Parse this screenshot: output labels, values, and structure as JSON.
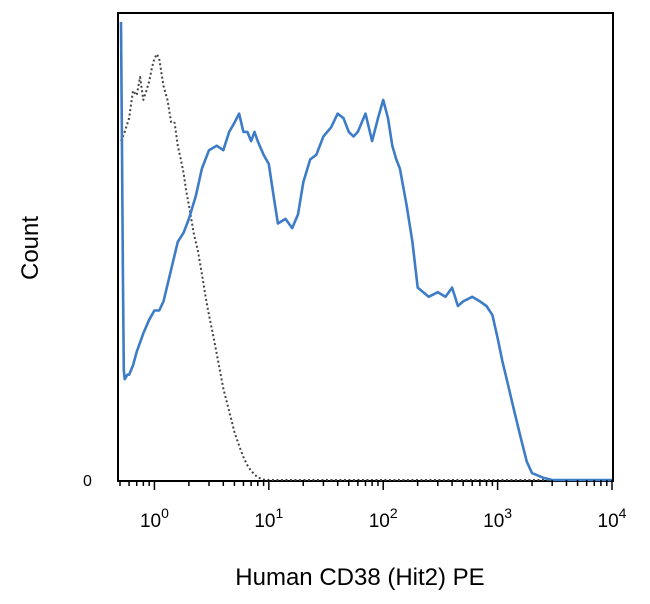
{
  "chart_data": {
    "type": "line",
    "xlabel": "Human CD38 (Hit2) PE",
    "ylabel": "Count",
    "x_scale": "log",
    "xlim": [
      0.5,
      10000
    ],
    "ylim": [
      0,
      100
    ],
    "y_zero_label": "0",
    "x_ticks": [
      {
        "value": 1,
        "base": "10",
        "exp": "0"
      },
      {
        "value": 10,
        "base": "10",
        "exp": "1"
      },
      {
        "value": 100,
        "base": "10",
        "exp": "2"
      },
      {
        "value": 1000,
        "base": "10",
        "exp": "3"
      },
      {
        "value": 10000,
        "base": "10",
        "exp": "4"
      }
    ],
    "grid": false,
    "legend": "none",
    "series": [
      {
        "style": "dotted",
        "color": "#444444",
        "x": [
          0.51,
          0.55,
          0.6,
          0.65,
          0.7,
          0.75,
          0.8,
          0.85,
          0.9,
          0.95,
          1.0,
          1.05,
          1.1,
          1.2,
          1.3,
          1.4,
          1.5,
          1.6,
          1.7,
          1.8,
          1.9,
          2.0,
          2.1,
          2.2,
          2.4,
          2.6,
          2.8,
          3.0,
          3.3,
          3.6,
          4.0,
          4.5,
          5.0,
          5.5,
          6.0,
          6.5,
          7.0,
          7.5,
          8.0,
          8.5,
          9.0,
          10,
          12,
          15,
          20,
          30,
          50,
          100,
          1000,
          10000
        ],
        "y": [
          74,
          76,
          79,
          85,
          84,
          88,
          83,
          85,
          87,
          90,
          92,
          93,
          92,
          86,
          83,
          78,
          78,
          73,
          70,
          67,
          63,
          60,
          57,
          54,
          50,
          45,
          40,
          36,
          31,
          26,
          20,
          15,
          10.5,
          7.5,
          5,
          3.2,
          2,
          1.2,
          0.6,
          0.3,
          0.1,
          0,
          0,
          0,
          0,
          0,
          0,
          0,
          0,
          0
        ]
      },
      {
        "style": "solid",
        "color": "#3d7cc7",
        "x": [
          0.51,
          0.52,
          0.53,
          0.54,
          0.55,
          0.58,
          0.6,
          0.65,
          0.7,
          0.8,
          0.9,
          1.0,
          1.1,
          1.2,
          1.4,
          1.6,
          1.8,
          2.0,
          2.3,
          2.6,
          3.0,
          3.5,
          4.0,
          4.5,
          5.0,
          5.5,
          6.0,
          6.5,
          7.0,
          7.5,
          8.0,
          9.0,
          10,
          11,
          12,
          14,
          16,
          18,
          20,
          23,
          26,
          30,
          35,
          40,
          45,
          50,
          55,
          60,
          70,
          80,
          90,
          100,
          110,
          120,
          130,
          140,
          160,
          180,
          200,
          250,
          300,
          350,
          400,
          450,
          500,
          600,
          700,
          800,
          900,
          1000,
          1100,
          1200,
          1400,
          1600,
          1800,
          2000,
          2500,
          3000,
          4000,
          5000,
          7000,
          10000
        ],
        "y": [
          100,
          75,
          45,
          24,
          22,
          23,
          23,
          25,
          28,
          32,
          35,
          37,
          37,
          39,
          46,
          52,
          54,
          57,
          62,
          68,
          72,
          73,
          72,
          76,
          78,
          80,
          76,
          76,
          74,
          76,
          74,
          71,
          69,
          62,
          56,
          57,
          55,
          58,
          65,
          70,
          71,
          75,
          77,
          80,
          79,
          76,
          75,
          76,
          80,
          74,
          79,
          83,
          79,
          73,
          70,
          68,
          60,
          52,
          42,
          40,
          41,
          40,
          42,
          38,
          39,
          40,
          39,
          38,
          36,
          31,
          26,
          22,
          15,
          9,
          4,
          1.5,
          0.5,
          0,
          0,
          0,
          0,
          0
        ]
      }
    ]
  }
}
